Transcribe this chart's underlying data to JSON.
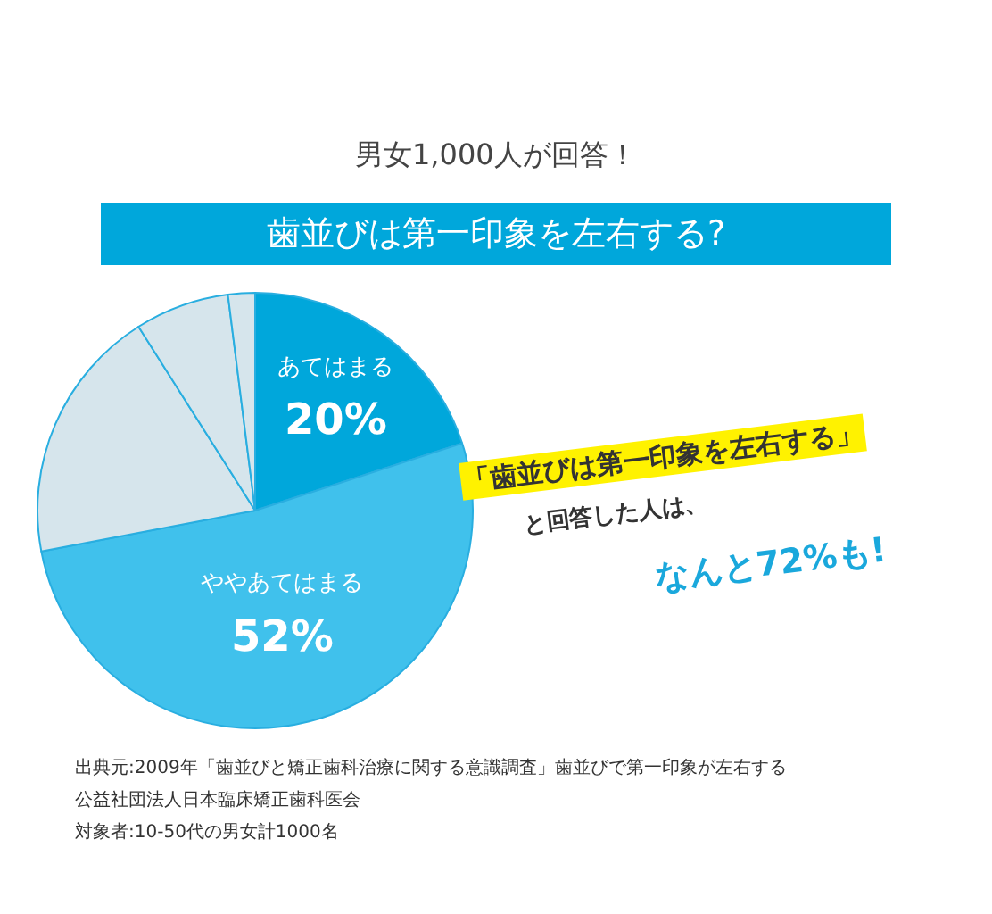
{
  "chart_data": {
    "type": "pie",
    "title": "男女1,000人が回答！",
    "subtitle": "歯並びは第一印象を左右する?",
    "categories": [
      "あてはまる",
      "ややあてはまる",
      null,
      null,
      null
    ],
    "values": [
      20,
      52,
      19,
      7,
      2
    ],
    "value_labels": [
      "20%",
      "52%",
      null,
      null,
      null
    ],
    "colors": [
      "#00a7db",
      "#40c1ec",
      "#d6e5ec",
      "#d6e5ec",
      "#d6e5ec"
    ],
    "legend": false,
    "annotations": [
      "「歯並びは第一印象を左右する」",
      "と回答した人は、",
      "なんと72%も!",
      "出典元:2009年「歯並びと矯正歯科治療に関する意識調査」歯並びで第一印象が左右する",
      "公益社団法人日本臨床矯正歯科医会",
      "対象者:10-50代の男女計1000名"
    ]
  }
}
